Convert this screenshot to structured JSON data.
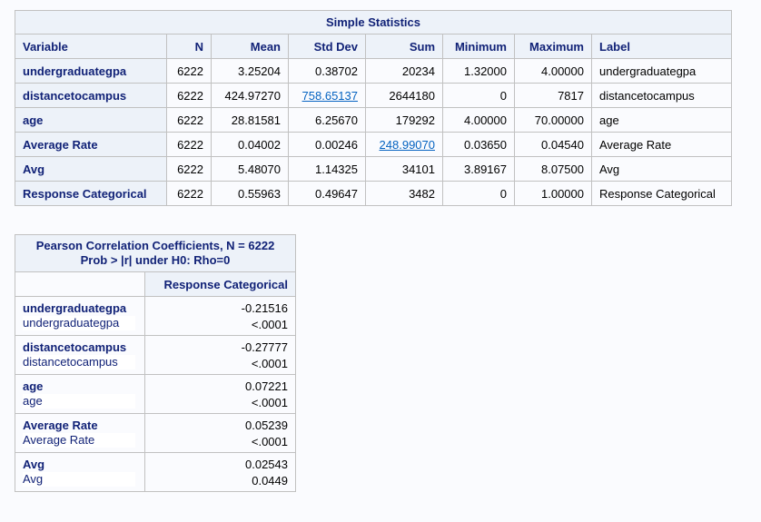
{
  "stats": {
    "title": "Simple Statistics",
    "headers": [
      "Variable",
      "N",
      "Mean",
      "Std Dev",
      "Sum",
      "Minimum",
      "Maximum",
      "Label"
    ],
    "rows": [
      {
        "var": "undergraduategpa",
        "n": "6222",
        "mean": "3.25204",
        "std": "0.38702",
        "sum": "20234",
        "min": "1.32000",
        "max": "4.00000",
        "label": "undergraduategpa"
      },
      {
        "var": "distancetocampus",
        "n": "6222",
        "mean": "424.97270",
        "std": "758.65137",
        "sum": "2644180",
        "min": "0",
        "max": "7817",
        "label": "distancetocampus"
      },
      {
        "var": "age",
        "n": "6222",
        "mean": "28.81581",
        "std": "6.25670",
        "sum": "179292",
        "min": "4.00000",
        "max": "70.00000",
        "label": "age"
      },
      {
        "var": "Average Rate",
        "n": "6222",
        "mean": "0.04002",
        "std": "0.00246",
        "sum": "248.99070",
        "min": "0.03650",
        "max": "0.04540",
        "label": "Average Rate"
      },
      {
        "var": "Avg",
        "n": "6222",
        "mean": "5.48070",
        "std": "1.14325",
        "sum": "34101",
        "min": "3.89167",
        "max": "8.07500",
        "label": "Avg"
      },
      {
        "var": "Response Categorical",
        "n": "6222",
        "mean": "0.55963",
        "std": "0.49647",
        "sum": "3482",
        "min": "0",
        "max": "1.00000",
        "label": "Response Categorical"
      }
    ]
  },
  "corr": {
    "title_line1": "Pearson Correlation Coefficients, N = 6222",
    "title_line2": "Prob > |r| under H0: Rho=0",
    "column": "Response Categorical",
    "rows": [
      {
        "name": "undergraduategpa",
        "label": "undergraduategpa",
        "r": "-0.21516",
        "p": "<.0001"
      },
      {
        "name": "distancetocampus",
        "label": "distancetocampus",
        "r": "-0.27777",
        "p": "<.0001"
      },
      {
        "name": "age",
        "label": "age",
        "r": "0.07221",
        "p": "<.0001"
      },
      {
        "name": "Average Rate",
        "label": "Average Rate",
        "r": "0.05239",
        "p": "<.0001"
      },
      {
        "name": "Avg",
        "label": "Avg",
        "r": "0.02543",
        "p": "0.0449"
      }
    ]
  }
}
